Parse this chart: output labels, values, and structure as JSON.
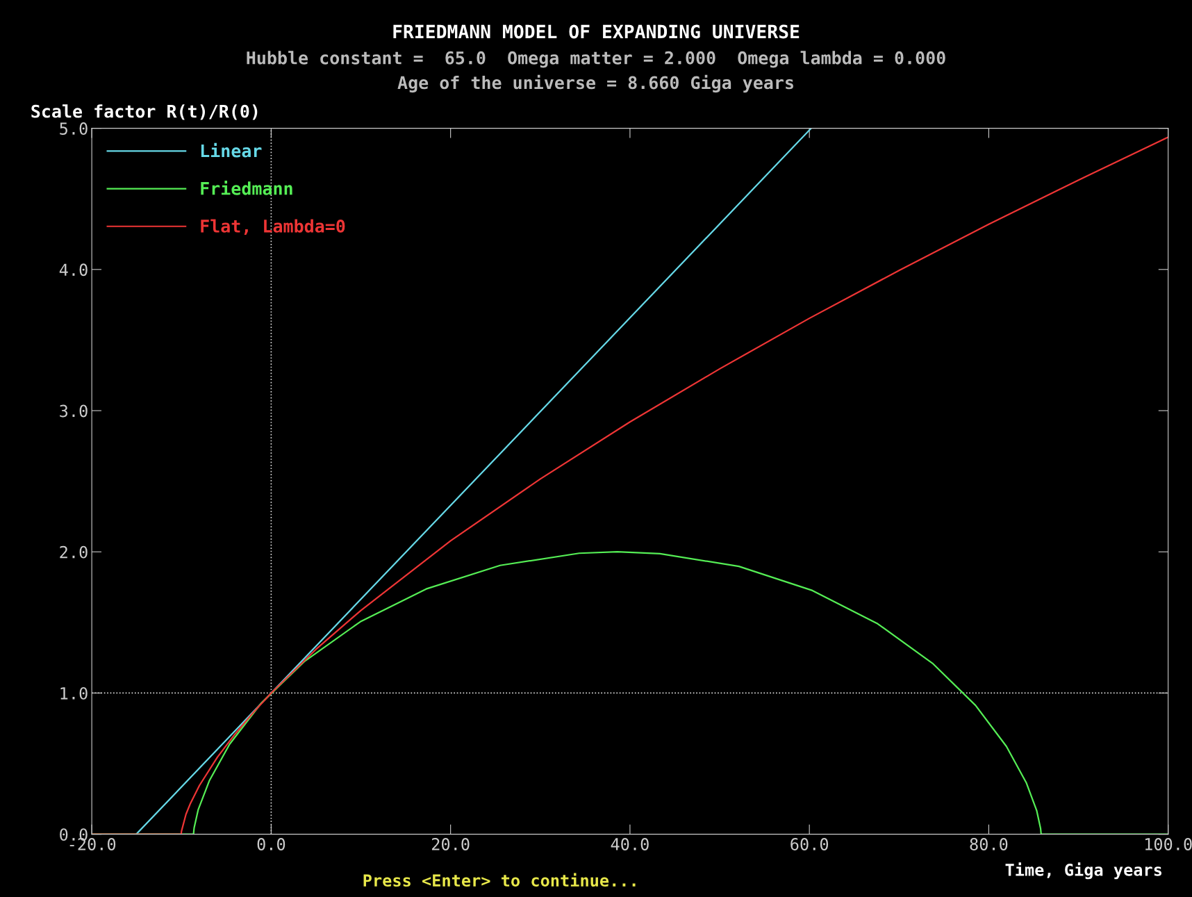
{
  "chart_data": {
    "type": "line",
    "title": "FRIEDMANN MODEL OF EXPANDING UNIVERSE",
    "subtitle": "Hubble constant =  65.0  Omega matter = 2.000  Omega lambda = 0.000\nAge of the universe = 8.660 Giga years",
    "xlabel": "Time, Giga years",
    "ylabel": "Scale factor R(t)/R(0)",
    "annotations": [
      "Press <Enter> to continue..."
    ],
    "series": [
      {
        "name": "Linear",
        "color": "#66d9e8",
        "x": [
          -15.04,
          0,
          60.2
        ],
        "values": [
          0,
          1,
          5
        ]
      },
      {
        "name": "Friedmann",
        "color": "#55ee55",
        "x": [
          -20,
          -8.66,
          -8.59,
          -8.13,
          -6.9,
          -4.63,
          -1.1,
          3.77,
          9.94,
          17.28,
          25.52,
          34.34,
          38.59,
          43.34,
          52.14,
          60.34,
          67.62,
          73.72,
          78.52,
          81.97,
          84.18,
          85.35,
          85.78,
          85.84,
          100
        ],
        "values": [
          0,
          0,
          0.045,
          0.175,
          0.378,
          0.638,
          0.929,
          1.227,
          1.505,
          1.737,
          1.904,
          1.99,
          2.0,
          1.987,
          1.897,
          1.726,
          1.49,
          1.211,
          0.913,
          0.622,
          0.365,
          0.166,
          0.04,
          0,
          0
        ]
      },
      {
        "name": "Flat, Lambda=0",
        "color": "#ee3535",
        "x": [
          -20,
          -10.03,
          -10.0,
          -9.5,
          -9,
          -8,
          -6,
          -4,
          -2,
          0,
          5,
          10,
          20,
          30,
          40,
          50,
          60,
          70,
          80,
          90,
          100
        ],
        "values": [
          0,
          0,
          0.021,
          0.141,
          0.219,
          0.345,
          0.545,
          0.712,
          0.862,
          1,
          1.31,
          1.585,
          2.078,
          2.516,
          2.92,
          3.296,
          3.654,
          3.993,
          4.32,
          4.633,
          4.937
        ]
      }
    ],
    "xlim": [
      -20,
      100
    ],
    "ylim": [
      0,
      5
    ],
    "xticks": [
      {
        "value": -20,
        "label": "-20.0"
      },
      {
        "value": 0,
        "label": "0.0"
      },
      {
        "value": 20,
        "label": "20.0"
      },
      {
        "value": 40,
        "label": "40.0"
      },
      {
        "value": 60,
        "label": "60.0"
      },
      {
        "value": 80,
        "label": "80.0"
      },
      {
        "value": 100,
        "label": "100.0"
      }
    ],
    "yticks": [
      {
        "value": 0,
        "label": "0.0"
      },
      {
        "value": 1,
        "label": "1.0"
      },
      {
        "value": 2,
        "label": "2.0"
      },
      {
        "value": 3,
        "label": "3.0"
      },
      {
        "value": 4,
        "label": "4.0"
      },
      {
        "value": 5,
        "label": "5.0"
      }
    ],
    "ref_lines": [
      {
        "axis": "x",
        "value": 0,
        "label": null,
        "color": "#dddddd",
        "line_style": "dotted"
      },
      {
        "axis": "y",
        "value": 1,
        "label": null,
        "color": "#dddddd",
        "line_style": "dotted"
      }
    ],
    "grid": false,
    "legend": "top left",
    "marker": "none",
    "line_style": "solid"
  }
}
